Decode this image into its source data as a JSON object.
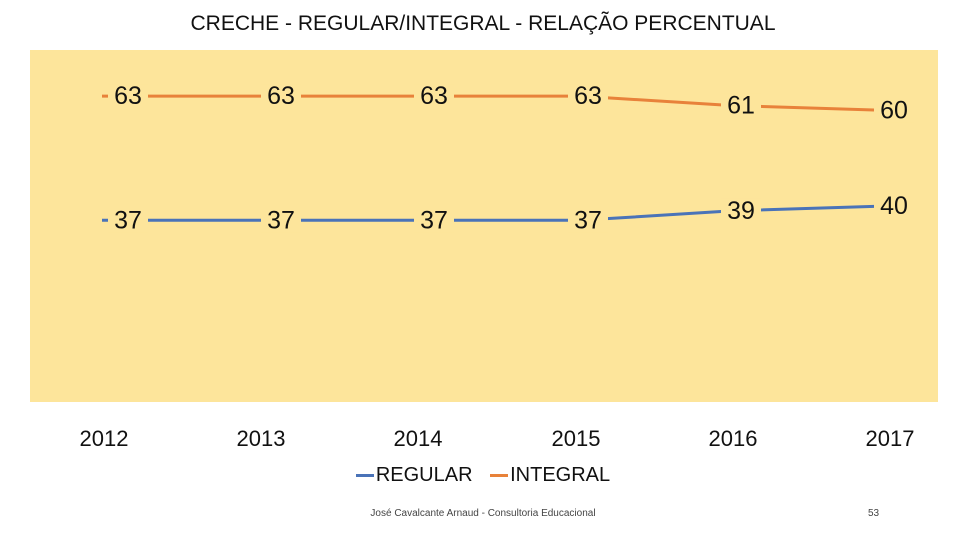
{
  "chart_data": {
    "type": "line",
    "title": "CRECHE - REGULAR/INTEGRAL - RELAÇÃO PERCENTUAL",
    "categories": [
      "2012",
      "2013",
      "2014",
      "2015",
      "2016",
      "2017"
    ],
    "series": [
      {
        "name": "REGULAR",
        "values": [
          37,
          37,
          37,
          37,
          39,
          40
        ],
        "labels": [
          "37",
          "37",
          "37",
          "37",
          "39",
          "40"
        ],
        "color": "#4a73b8"
      },
      {
        "name": "INTEGRAL",
        "values": [
          63,
          63,
          63,
          63,
          61,
          60
        ],
        "labels": [
          "63",
          "63",
          "63",
          "63",
          "61",
          "60"
        ],
        "color": "#e8823a"
      }
    ],
    "plot_background": "#fde59b",
    "legend_position": "bottom",
    "grid": false
  },
  "footer": {
    "credit": "José Cavalcante Arnaud - Consultoria Educacional",
    "page_number": "53"
  }
}
